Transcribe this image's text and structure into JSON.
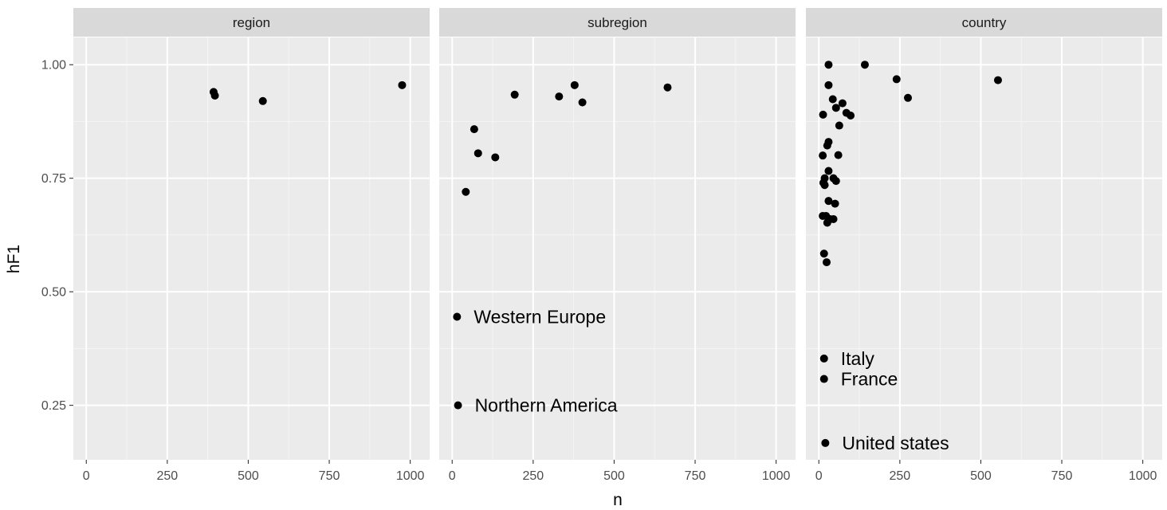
{
  "chart_data": {
    "type": "scatter",
    "xlabel": "n",
    "ylabel": "hF1",
    "xlim": [
      -40,
      1060
    ],
    "ylim": [
      0.13,
      1.06
    ],
    "x_ticks": [
      0,
      250,
      500,
      750,
      1000
    ],
    "x_tick_labels": [
      "0",
      "250",
      "500",
      "750",
      "1000"
    ],
    "y_ticks": [
      0.25,
      0.5,
      0.75,
      1.0
    ],
    "y_tick_labels": [
      "0.25",
      "0.50",
      "0.75",
      "1.00"
    ],
    "grid": true,
    "colors": {
      "panel_bg": "#ebebeb",
      "strip_bg": "#d9d9d9",
      "grid_major": "#ffffff",
      "grid_minor": "#f5f5f5",
      "point": "#000000",
      "tick": "#333333"
    },
    "panels": [
      {
        "title": "region",
        "points": [
          {
            "x": 393,
            "y": 0.94
          },
          {
            "x": 397,
            "y": 0.932
          },
          {
            "x": 545,
            "y": 0.92
          },
          {
            "x": 975,
            "y": 0.955
          }
        ]
      },
      {
        "title": "subregion",
        "points": [
          {
            "x": 42,
            "y": 0.72
          },
          {
            "x": 68,
            "y": 0.858
          },
          {
            "x": 80,
            "y": 0.805
          },
          {
            "x": 133,
            "y": 0.796
          },
          {
            "x": 193,
            "y": 0.934
          },
          {
            "x": 330,
            "y": 0.93
          },
          {
            "x": 378,
            "y": 0.955
          },
          {
            "x": 402,
            "y": 0.917
          },
          {
            "x": 665,
            "y": 0.95
          },
          {
            "x": 15,
            "y": 0.445,
            "label": "Western Europe"
          },
          {
            "x": 18,
            "y": 0.25,
            "label": "Northern America"
          }
        ]
      },
      {
        "title": "country",
        "points": [
          {
            "x": 30,
            "y": 1.0
          },
          {
            "x": 142,
            "y": 1.0
          },
          {
            "x": 240,
            "y": 0.968
          },
          {
            "x": 553,
            "y": 0.966
          },
          {
            "x": 30,
            "y": 0.955
          },
          {
            "x": 275,
            "y": 0.927
          },
          {
            "x": 43,
            "y": 0.924
          },
          {
            "x": 73,
            "y": 0.915
          },
          {
            "x": 53,
            "y": 0.905
          },
          {
            "x": 85,
            "y": 0.894
          },
          {
            "x": 98,
            "y": 0.888
          },
          {
            "x": 13,
            "y": 0.89
          },
          {
            "x": 63,
            "y": 0.866
          },
          {
            "x": 30,
            "y": 0.83
          },
          {
            "x": 26,
            "y": 0.822
          },
          {
            "x": 60,
            "y": 0.801
          },
          {
            "x": 12,
            "y": 0.8
          },
          {
            "x": 30,
            "y": 0.766
          },
          {
            "x": 18,
            "y": 0.75
          },
          {
            "x": 45,
            "y": 0.75
          },
          {
            "x": 53,
            "y": 0.744
          },
          {
            "x": 14,
            "y": 0.74
          },
          {
            "x": 18,
            "y": 0.735
          },
          {
            "x": 30,
            "y": 0.7
          },
          {
            "x": 50,
            "y": 0.694
          },
          {
            "x": 12,
            "y": 0.667
          },
          {
            "x": 22,
            "y": 0.667
          },
          {
            "x": 35,
            "y": 0.66
          },
          {
            "x": 45,
            "y": 0.66
          },
          {
            "x": 26,
            "y": 0.652
          },
          {
            "x": 16,
            "y": 0.584
          },
          {
            "x": 24,
            "y": 0.565
          },
          {
            "x": 16,
            "y": 0.353,
            "label": "Italy"
          },
          {
            "x": 16,
            "y": 0.308,
            "label": "France"
          },
          {
            "x": 20,
            "y": 0.167,
            "label": "United states"
          }
        ]
      }
    ]
  }
}
